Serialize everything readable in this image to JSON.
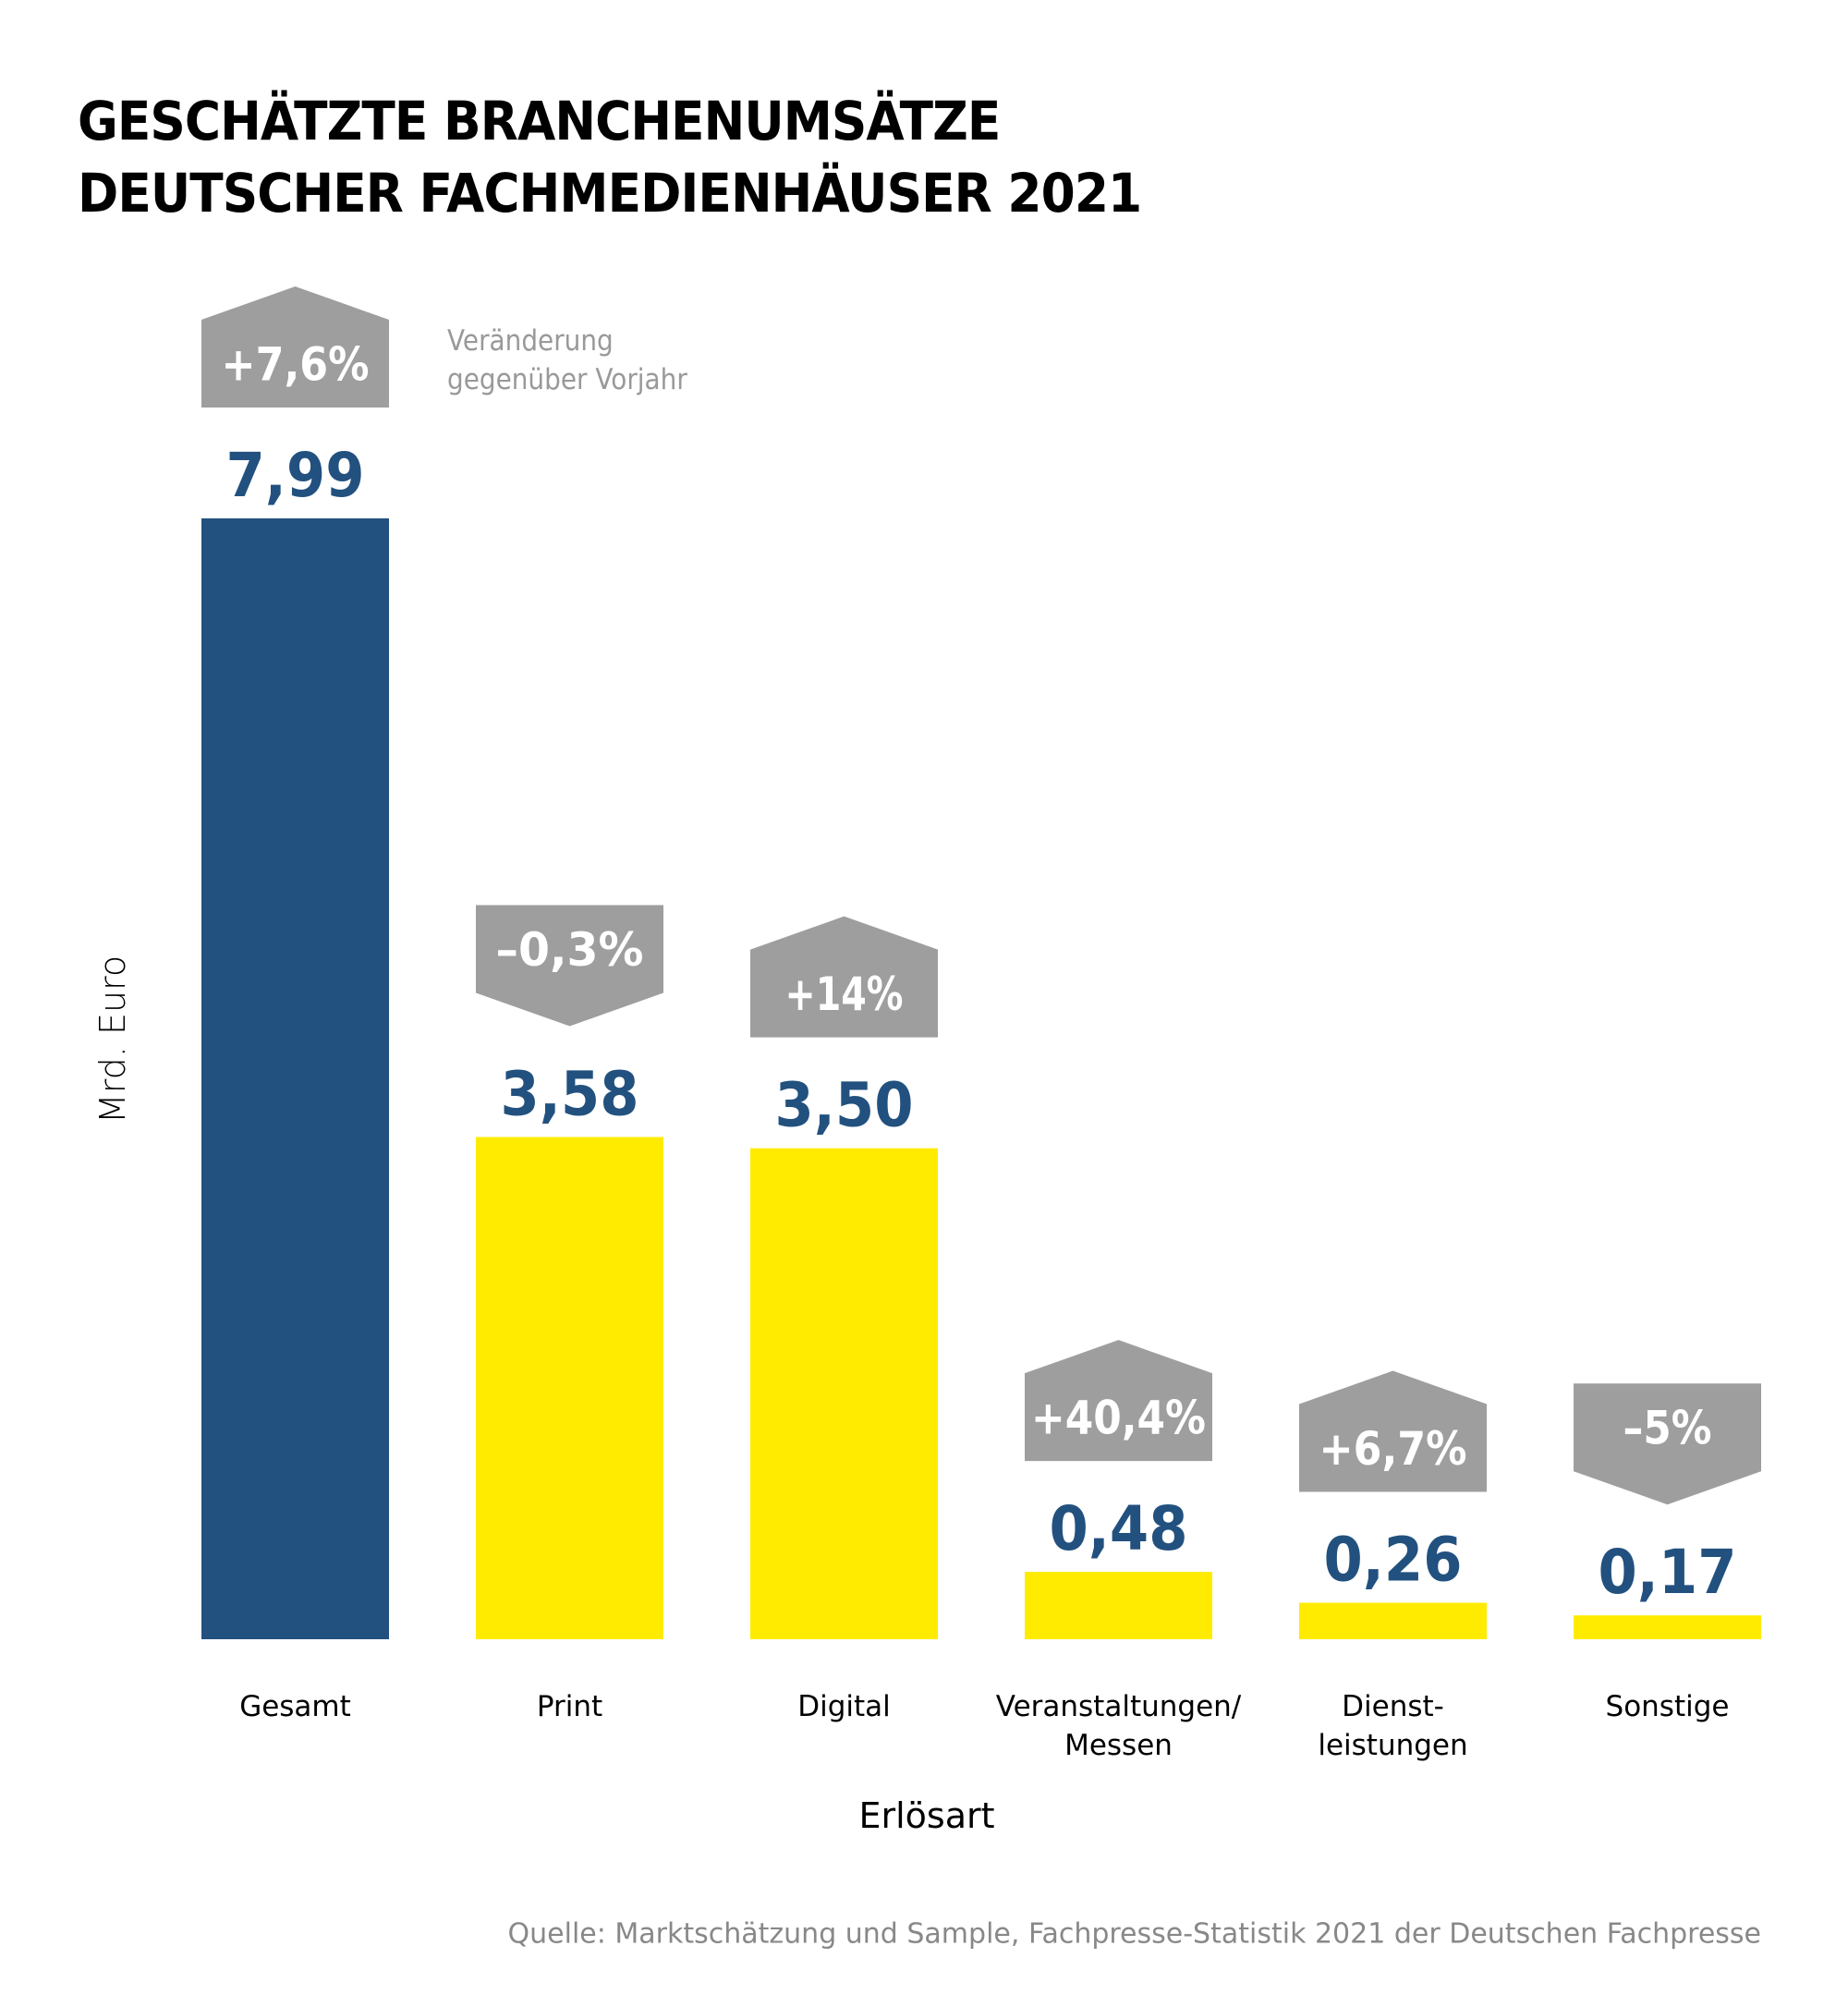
{
  "chart_data": {
    "type": "bar",
    "title": "GESCHÄTZTE BRANCHENUMSÄTZE DEUTSCHER FACHMEDIENHÄUSER 2021",
    "title_lines": [
      "GESCHÄTZTE BRANCHENUMSÄTZE",
      "DEUTSCHER FACHMEDIENHÄUSER 2021"
    ],
    "xlabel": "Erlösart",
    "ylabel": "Mrd. Euro",
    "ylim": [
      0,
      8
    ],
    "grid": false,
    "legend": null,
    "categories": [
      [
        "Gesamt"
      ],
      [
        "Print"
      ],
      [
        "Digital"
      ],
      [
        "Veranstaltungen/",
        "Messen"
      ],
      [
        "Dienst-",
        "leistungen"
      ],
      [
        "Sonstige"
      ]
    ],
    "values": [
      7.99,
      3.58,
      3.5,
      0.48,
      0.26,
      0.17
    ],
    "value_labels": [
      "7,99",
      "3,58",
      "3,50",
      "0,48",
      "0,26",
      "0,17"
    ],
    "change_vs_prior_year_percent": [
      7.6,
      -0.3,
      14,
      40.4,
      6.7,
      -5
    ],
    "change_labels": [
      "+7,6%",
      "–0,3%",
      "+14%",
      "+40,4%",
      "+6,7%",
      "–5%"
    ],
    "change_note": [
      "Veränderung",
      "gegenüber Vorjahr"
    ],
    "source": "Quelle: Marktschätzung und Sample, Fachpresse-Statistik 2021 der Deutschen Fachpresse"
  },
  "colors": {
    "total_bar": "#22517F",
    "segment_bar": "#FFEB00",
    "value_text": "#22517F",
    "badge": "#9E9E9E",
    "badge_text": "#FFFFFF",
    "note_text": "#999999",
    "source_text": "#888888"
  }
}
